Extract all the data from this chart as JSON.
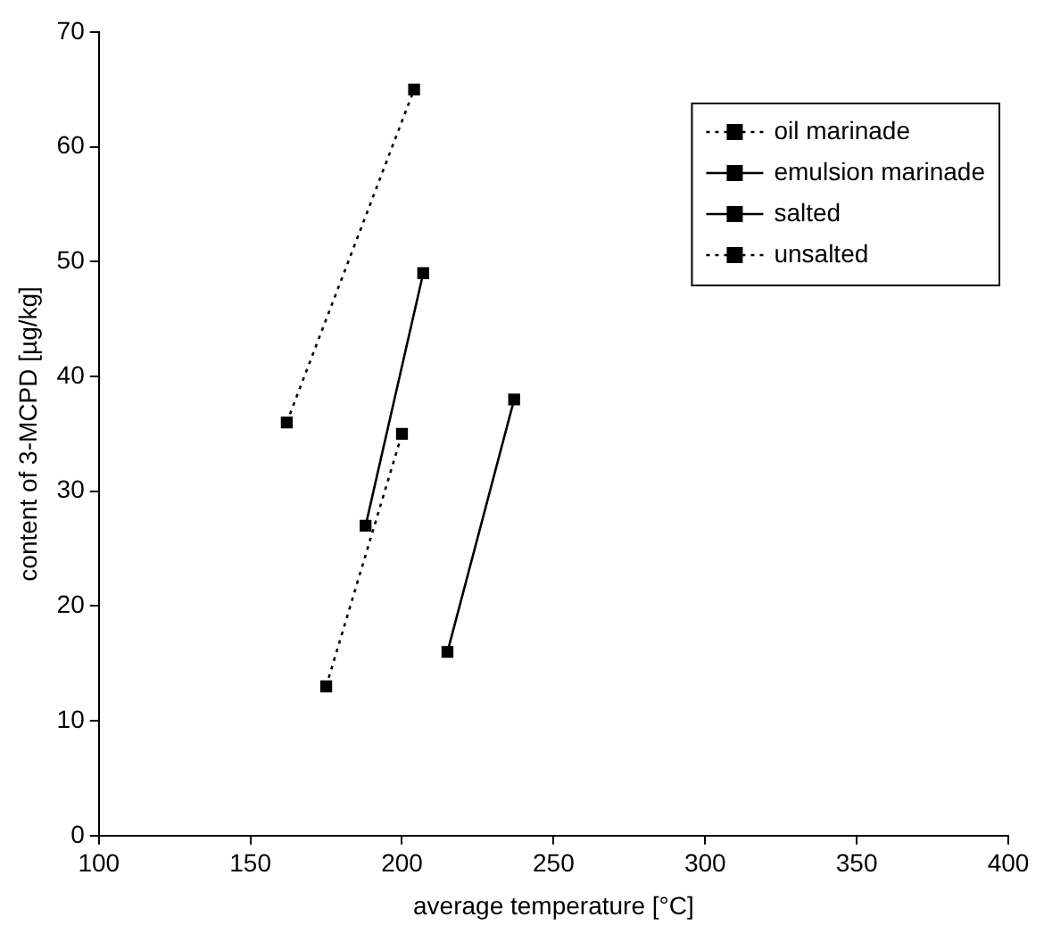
{
  "chart_data": {
    "type": "scatter",
    "xlabel": "average temperature [°C]",
    "ylabel": "content of 3-MCPD [µg/kg]",
    "xlim": [
      100,
      400
    ],
    "xticks": [
      100,
      150,
      200,
      250,
      300,
      350,
      400
    ],
    "ylim": [
      0,
      70
    ],
    "yticks": [
      0,
      10,
      20,
      30,
      40,
      50,
      60,
      70
    ],
    "grid": false,
    "legend": "top right",
    "marker": "square",
    "series": [
      {
        "name": "oil marinade",
        "type": "line",
        "color": "#000000",
        "line_style": "dotted",
        "x": [
          162,
          204
        ],
        "values": [
          36,
          65
        ]
      },
      {
        "name": "emulsion marinade",
        "type": "line",
        "color": "#000000",
        "line_style": "solid",
        "x": [
          215,
          237
        ],
        "values": [
          16,
          38
        ]
      },
      {
        "name": "salted",
        "type": "line",
        "color": "#000000",
        "line_style": "solid",
        "x": [
          188,
          207
        ],
        "values": [
          27,
          49
        ]
      },
      {
        "name": "unsalted",
        "type": "line",
        "color": "#000000",
        "line_style": "dotted",
        "x": [
          175,
          200
        ],
        "values": [
          13,
          35
        ]
      }
    ]
  }
}
